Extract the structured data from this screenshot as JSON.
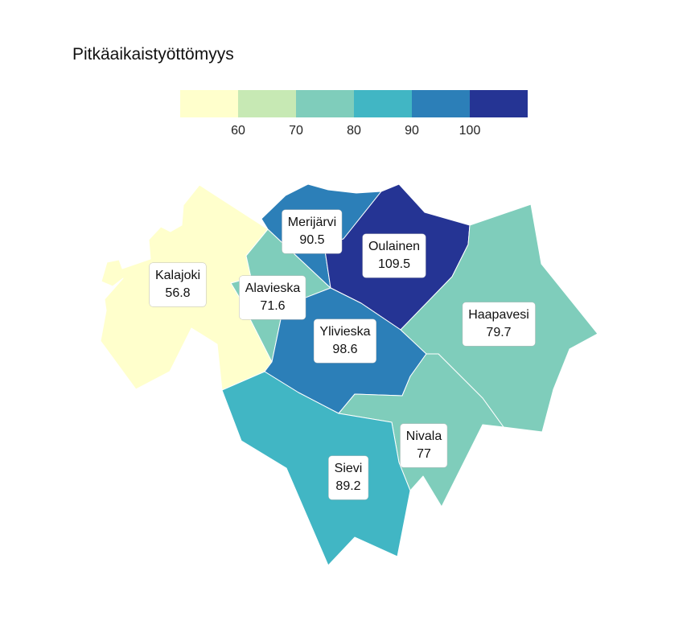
{
  "title": "Pitkäaikaistyöttömyys",
  "legend": {
    "colors": [
      "#ffffcc",
      "#c7e9b4",
      "#7fcdbb",
      "#41b6c4",
      "#2c7fb8",
      "#253494"
    ],
    "ticks": [
      "60",
      "70",
      "80",
      "90",
      "100"
    ]
  },
  "regions": {
    "kalajoki": {
      "name": "Kalajoki",
      "value": "56.8",
      "color": "#ffffcc"
    },
    "alavieska": {
      "name": "Alavieska",
      "value": "71.6",
      "color": "#7fcdbb"
    },
    "merijarvi": {
      "name": "Merijärvi",
      "value": "90.5",
      "color": "#2c7fb8"
    },
    "oulainen": {
      "name": "Oulainen",
      "value": "109.5",
      "color": "#253494"
    },
    "ylivieska": {
      "name": "Ylivieska",
      "value": "98.6",
      "color": "#2c7fb8"
    },
    "haapavesi": {
      "name": "Haapavesi",
      "value": "79.7",
      "color": "#7fcdbb"
    },
    "nivala": {
      "name": "Nivala",
      "value": "77",
      "color": "#7fcdbb"
    },
    "sievi": {
      "name": "Sievi",
      "value": "89.2",
      "color": "#41b6c4"
    }
  }
}
